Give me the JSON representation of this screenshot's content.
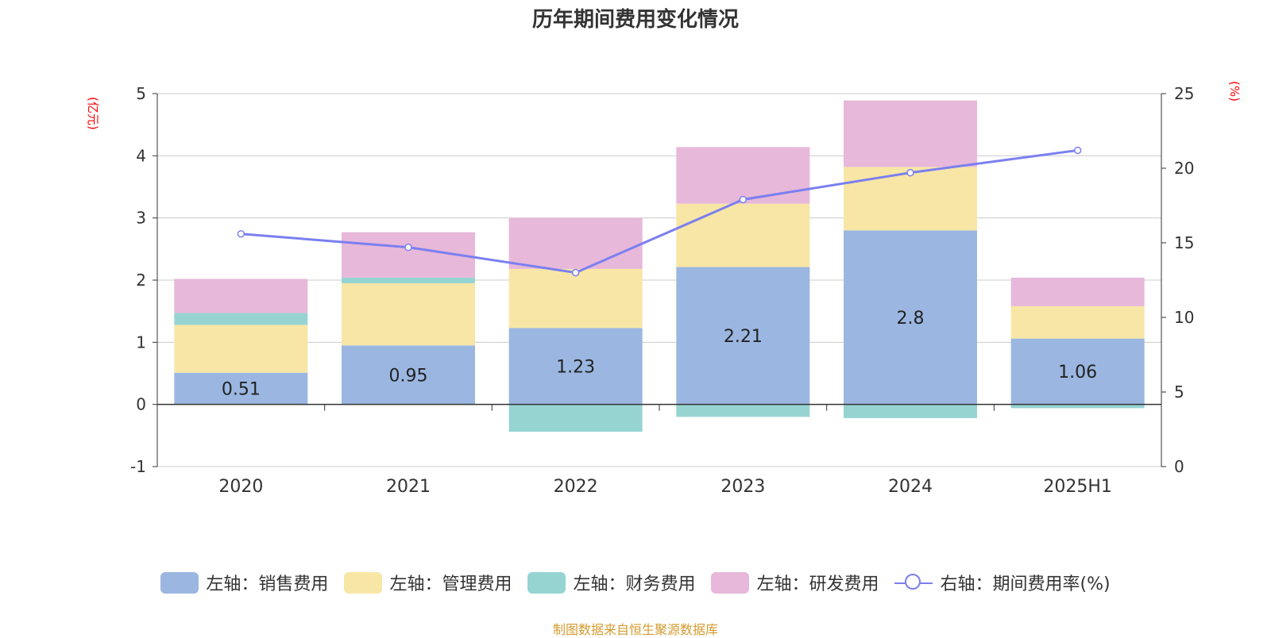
{
  "title": "历年期间费用变化情况",
  "left_unit": "(亿元)",
  "right_unit": "(%)",
  "source": "制图数据来自恒生聚源数据库",
  "colors": {
    "销售费用": "#9bb7e1",
    "管理费用": "#f8e6a6",
    "财务费用": "#96d4d2",
    "研发费用": "#e7b8d9",
    "期间费用率": "#7b7ff0"
  },
  "legend": [
    {
      "label": "左轴：销售费用",
      "type": "bar",
      "color": "#9bb7e1"
    },
    {
      "label": "左轴：管理费用",
      "type": "bar",
      "color": "#f8e6a6"
    },
    {
      "label": "左轴：财务费用",
      "type": "bar",
      "color": "#96d4d2"
    },
    {
      "label": "左轴：研发费用",
      "type": "bar",
      "color": "#e7b8d9"
    },
    {
      "label": "右轴：期间费用率(%)",
      "type": "line",
      "color": "#7b7ff0"
    }
  ],
  "chart_data": {
    "type": "bar",
    "stacked": true,
    "categories": [
      "2020",
      "2021",
      "2022",
      "2023",
      "2024",
      "2025H1"
    ],
    "series": [
      {
        "name": "左轴：销售费用",
        "axis": "left",
        "values": [
          0.51,
          0.95,
          1.23,
          2.21,
          2.8,
          1.06
        ],
        "labels": [
          "0.51",
          "0.95",
          "1.23",
          "2.21",
          "2.8",
          "1.06"
        ]
      },
      {
        "name": "左轴：管理费用",
        "axis": "left",
        "values": [
          0.77,
          1.0,
          0.95,
          1.02,
          1.02,
          0.52
        ]
      },
      {
        "name": "左轴：财务费用",
        "axis": "left",
        "values": [
          0.19,
          0.09,
          -0.44,
          -0.2,
          -0.22,
          -0.06
        ]
      },
      {
        "name": "左轴：研发费用",
        "axis": "left",
        "values": [
          0.55,
          0.73,
          0.82,
          0.91,
          1.07,
          0.46
        ]
      },
      {
        "name": "右轴：期间费用率(%)",
        "axis": "right",
        "type": "line",
        "values": [
          15.6,
          14.7,
          13.0,
          17.9,
          19.7,
          21.2
        ]
      }
    ],
    "left_axis": {
      "ylim": [
        -1,
        5
      ],
      "ticks": [
        "-1",
        "0",
        "1",
        "2",
        "3",
        "4",
        "5"
      ]
    },
    "right_axis": {
      "ylim": [
        0,
        25
      ],
      "ticks": [
        "0",
        "5",
        "10",
        "15",
        "20",
        "25"
      ]
    },
    "grid": true,
    "legend_position": "bottom"
  }
}
